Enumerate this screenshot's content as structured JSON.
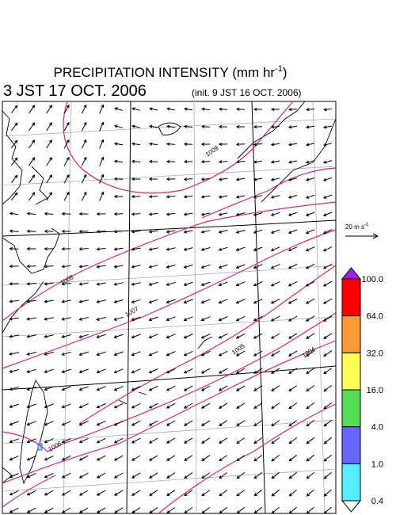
{
  "header": {
    "title": "PRECIPITATION INTENSITY (mm hr",
    "title_exp": "-1",
    "title_close": ")",
    "valid_time": "3 JST 17 OCT. 2006",
    "init_time": "(init. 9 JST 16 OCT. 2006)"
  },
  "vector_legend": {
    "label": "20 m s",
    "label_exp": "-1"
  },
  "isobar_labels": [
    "1009",
    "1008",
    "1007",
    "1005",
    "1004",
    "1006"
  ],
  "colorbar": {
    "labels": [
      "100.0",
      "64.0",
      "32.0",
      "16.0",
      "4.0",
      "1.0",
      "0.4"
    ],
    "colors": [
      "#a020f0",
      "#ff0000",
      "#ff9933",
      "#ffff55",
      "#55dd55",
      "#6666ff",
      "#55eeff",
      "#ffffff"
    ]
  }
}
